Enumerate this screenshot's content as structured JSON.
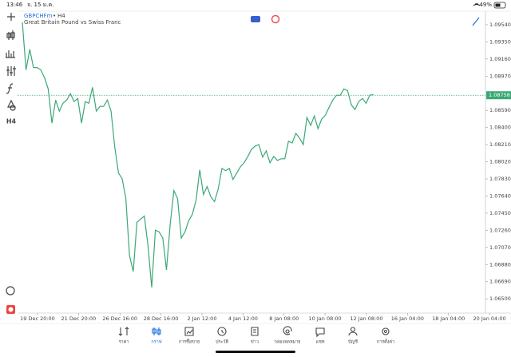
{
  "status_bar": {
    "time": "13:46",
    "date": "จ. 15 ม.ค.",
    "battery": "49%"
  },
  "toolbar": {
    "timeframe": "H4"
  },
  "chart_data": {
    "type": "line",
    "symbol": "GBPCHFm",
    "period": "H4",
    "subtitle": "Great Britain Pound vs Swiss Franc",
    "color": "#3aa876",
    "values": [
      1.09567,
      1.09039,
      1.09267,
      1.09065,
      1.09065,
      1.09039,
      1.08951,
      1.08827,
      1.08449,
      1.08704,
      1.08581,
      1.08669,
      1.08704,
      1.08775,
      1.08687,
      1.08722,
      1.08449,
      1.08687,
      1.08669,
      1.08845,
      1.08581,
      1.08634,
      1.08634,
      1.08704,
      1.08581,
      1.08185,
      1.07895,
      1.07833,
      1.07613,
      1.06979,
      1.06803,
      1.07349,
      1.07384,
      1.07419,
      1.07085,
      1.06627,
      1.07261,
      1.07243,
      1.07173,
      1.06821,
      1.07331,
      1.07701,
      1.07613,
      1.07173,
      1.07243,
      1.07367,
      1.07437,
      1.07595,
      1.0793,
      1.07657,
      1.07745,
      1.07631,
      1.07578,
      1.07719,
      1.07947,
      1.07921,
      1.07947,
      1.07824,
      1.07895,
      1.07965,
      1.08009,
      1.08079,
      1.08159,
      1.08194,
      1.08211,
      1.08071,
      1.08141,
      1.08009,
      1.08079,
      1.08035,
      1.08053,
      1.08053,
      1.08247,
      1.08229,
      1.08335,
      1.08282,
      1.08211,
      1.08511,
      1.08423,
      1.08528,
      1.08387,
      1.08493,
      1.08537,
      1.08625,
      1.08704,
      1.08757,
      1.08757,
      1.08827,
      1.0881,
      1.08651,
      1.08599,
      1.08687,
      1.08722,
      1.08669,
      1.08757,
      1.08766
    ],
    "current_price": {
      "value": 1.08758,
      "label": "1.08758"
    },
    "xlim": [
      0,
      125.3
    ],
    "xticks": [
      {
        "value": 4.1,
        "label": "19 Dec 20:00"
      },
      {
        "value": 15.2,
        "label": "21 Dec 20:00"
      },
      {
        "value": 26.4,
        "label": "26 Dec 16:00"
      },
      {
        "value": 37.5,
        "label": "28 Dec 16:00"
      },
      {
        "value": 48.6,
        "label": "2 Jan 12:00"
      },
      {
        "value": 59.7,
        "label": "4 Jan 12:00"
      },
      {
        "value": 70.8,
        "label": "8 Jan 08:00"
      },
      {
        "value": 81.9,
        "label": "10 Jan 08:00"
      },
      {
        "value": 93.1,
        "label": "12 Jan 08:00"
      },
      {
        "value": 104.2,
        "label": "16 Jan 04:00"
      },
      {
        "value": 115.3,
        "label": "18 Jan 04:00"
      },
      {
        "value": 126.4,
        "label": "20 Jan 04:00"
      }
    ],
    "ylim": [
      1.06342,
      1.0969
    ],
    "yticks": [
      {
        "value": 1.0954,
        "label": "1.09540"
      },
      {
        "value": 1.0935,
        "label": "1.09350"
      },
      {
        "value": 1.0916,
        "label": "1.09160"
      },
      {
        "value": 1.0897,
        "label": "1.08970"
      },
      {
        "value": 1.0859,
        "label": "1.08590"
      },
      {
        "value": 1.084,
        "label": "1.08400"
      },
      {
        "value": 1.0821,
        "label": "1.08210"
      },
      {
        "value": 1.0802,
        "label": "1.08020"
      },
      {
        "value": 1.0783,
        "label": "1.07830"
      },
      {
        "value": 1.0764,
        "label": "1.07640"
      },
      {
        "value": 1.0745,
        "label": "1.07450"
      },
      {
        "value": 1.0726,
        "label": "1.07260"
      },
      {
        "value": 1.0707,
        "label": "1.07070"
      },
      {
        "value": 1.0688,
        "label": "1.06880"
      },
      {
        "value": 1.0669,
        "label": "1.06690"
      },
      {
        "value": 1.065,
        "label": "1.06500"
      }
    ]
  },
  "tabs": [
    "ราคา",
    "กราฟ",
    "การซื้อขาย",
    "ประวัติ",
    "ข่าว",
    "กล่องจดหมาย",
    "แชท",
    "บัญชี",
    "การตั้งค่า"
  ],
  "active_tab": 1
}
